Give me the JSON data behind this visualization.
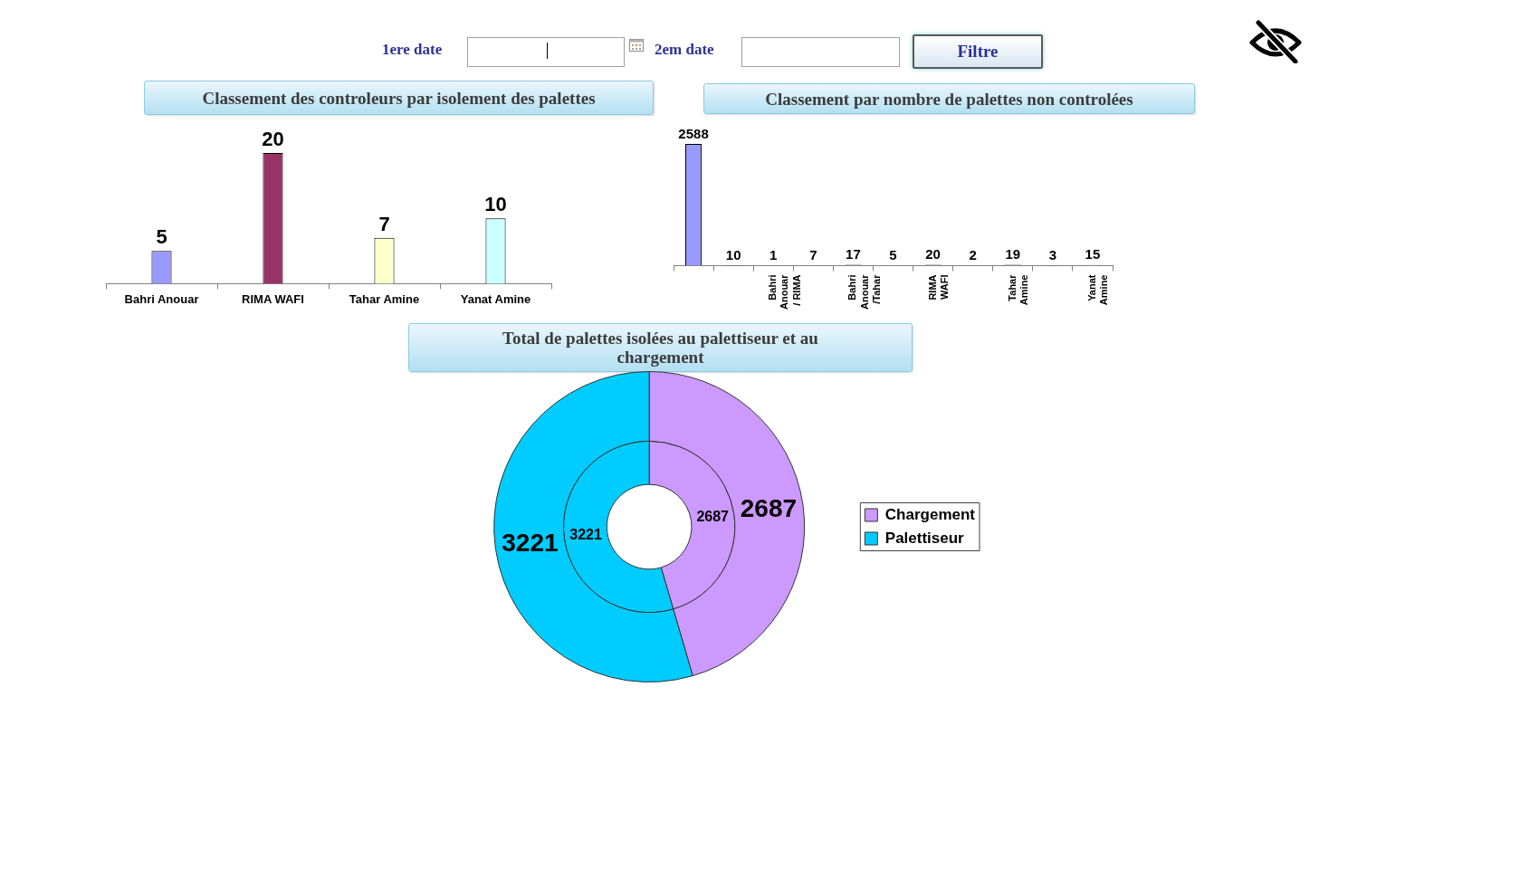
{
  "chart_data": [
    {
      "type": "other",
      "annotations": [
        "1ere date",
        "2em date",
        "Filtre"
      ]
    },
    {
      "type": "bar",
      "title": "Classement des controleurs par isolement des palettes",
      "categories": [
        "Bahri Anouar",
        "RIMA WAFI",
        "Tahar Amine",
        "Yanat Amine"
      ],
      "values": [
        5,
        20,
        7,
        10
      ],
      "colors": [
        "#9999ff",
        "#993366",
        "#ffffcc",
        "#ccffff"
      ],
      "data_labels": true
    },
    {
      "type": "bar",
      "title": "Classement par nombre de palettes non controlées",
      "categories": [
        null,
        null,
        "Bahri Anouar / RIMA",
        null,
        "Bahri Anouar /Tahar",
        null,
        "RIMA WAFI",
        null,
        "Tahar Amine",
        null,
        "Yanat Amine"
      ],
      "values": [
        2588,
        10,
        1,
        7,
        17,
        5,
        20,
        2,
        19,
        3,
        15
      ],
      "color": "#9999ff",
      "data_labels": true
    },
    {
      "type": "donut",
      "title": "Total de palettes isolées au palettiseur et au chargement",
      "categories": [
        "Chargement",
        "Palettiseur"
      ],
      "colors": [
        "#cc99ff",
        "#00ccff"
      ],
      "series": [
        {
          "values": [
            2687,
            3221
          ]
        },
        {
          "values": [
            2687,
            3221
          ]
        }
      ],
      "data_labels": true,
      "legend": "right"
    }
  ]
}
